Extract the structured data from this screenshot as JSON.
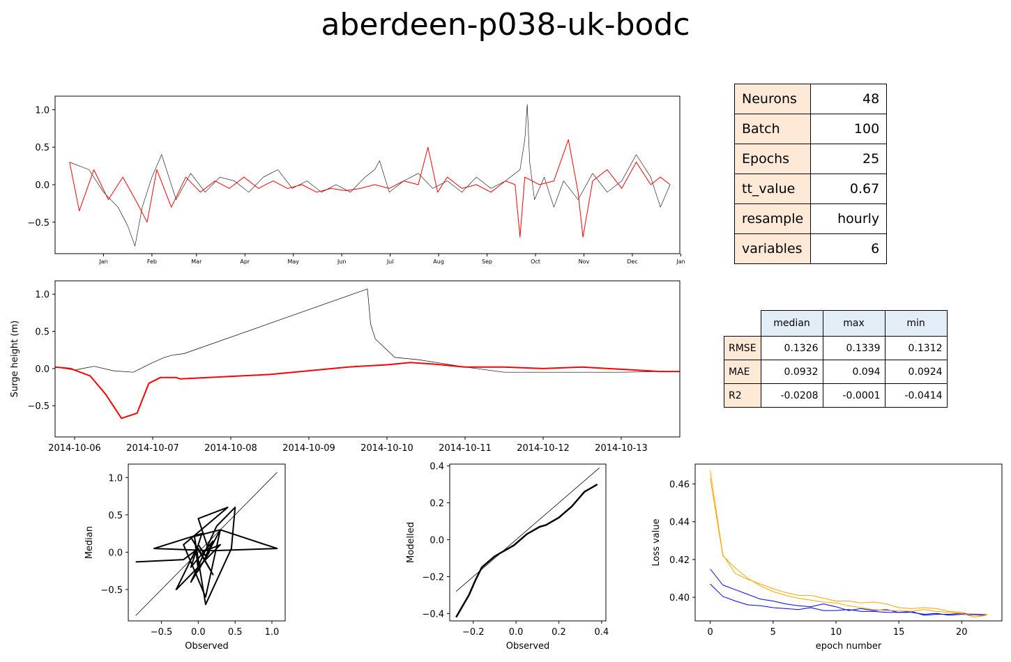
{
  "title": "aberdeen-p038-uk-bodc",
  "params": [
    {
      "key": "Neurons",
      "value": "48"
    },
    {
      "key": "Batch",
      "value": "100"
    },
    {
      "key": "Epochs",
      "value": "25"
    },
    {
      "key": "tt_value",
      "value": "0.67"
    },
    {
      "key": "resample",
      "value": "hourly"
    },
    {
      "key": "variables",
      "value": "6"
    }
  ],
  "metrics": {
    "columns": [
      "median",
      "max",
      "min"
    ],
    "rows": [
      {
        "name": "RMSE",
        "values": [
          "0.1326",
          "0.1339",
          "0.1312"
        ]
      },
      {
        "name": "MAE",
        "values": [
          "0.0932",
          "0.094",
          "0.0924"
        ]
      },
      {
        "name": "R2",
        "values": [
          "-0.0208",
          "-0.0001",
          "-0.0414"
        ]
      }
    ]
  },
  "colors": {
    "observed": "#000000",
    "modelled": "#ff0000",
    "train_loss": "#0000ff",
    "val_loss": "#ffa500"
  },
  "chart_data": [
    {
      "type": "line",
      "id": "year",
      "xlim": [
        -0.5,
        12.4
      ],
      "ylim": [
        -0.92,
        1.18
      ],
      "xticks": [
        0.5,
        1.5,
        2.42,
        3.42,
        4.42,
        5.42,
        6.42,
        7.42,
        8.42,
        9.42,
        10.42,
        11.42,
        12.42
      ],
      "xticklabels": [
        "Jan",
        "Feb",
        "Mar",
        "Apr",
        "May",
        "Jun",
        "Jul",
        "Aug",
        "Sep",
        "Oct",
        "Nov",
        "Dec",
        "Jan"
      ],
      "yticks": [
        -0.5,
        0.0,
        0.5,
        1.0
      ],
      "yticklabels": [
        "−0.5",
        "0.0",
        "0.5",
        "1.0"
      ],
      "series": [
        {
          "color": "#000000",
          "x": [
            -0.2,
            0.2,
            0.5,
            0.8,
            1.0,
            1.15,
            1.3,
            1.5,
            1.7,
            2.0,
            2.3,
            2.6,
            2.9,
            3.2,
            3.5,
            3.8,
            4.1,
            4.4,
            4.7,
            5.0,
            5.3,
            5.6,
            5.9,
            6.1,
            6.2,
            6.4,
            6.7,
            7.0,
            7.3,
            7.6,
            7.9,
            8.2,
            8.5,
            8.8,
            9.1,
            9.2,
            9.25,
            9.3,
            9.4,
            9.6,
            9.8,
            10.0,
            10.3,
            10.6,
            10.9,
            11.2,
            11.5,
            11.8,
            12.0,
            12.2
          ],
          "values": [
            0.3,
            0.2,
            -0.1,
            -0.3,
            -0.55,
            -0.82,
            -0.3,
            0.1,
            0.4,
            -0.2,
            0.15,
            -0.1,
            0.1,
            0.05,
            -0.1,
            0.1,
            0.2,
            -0.05,
            0.05,
            -0.1,
            0.0,
            -0.1,
            0.1,
            0.2,
            0.32,
            -0.1,
            0.05,
            0.15,
            -0.05,
            0.05,
            -0.1,
            0.1,
            -0.05,
            0.05,
            0.2,
            0.6,
            1.07,
            0.3,
            -0.2,
            0.1,
            -0.3,
            0.05,
            -0.2,
            0.15,
            -0.1,
            0.05,
            0.4,
            0.1,
            -0.3,
            0.0
          ]
        },
        {
          "color": "#ff0000",
          "x": [
            -0.2,
            0.0,
            0.3,
            0.6,
            0.9,
            1.2,
            1.4,
            1.6,
            1.9,
            2.2,
            2.5,
            2.8,
            3.1,
            3.4,
            3.7,
            4.0,
            4.3,
            4.6,
            4.9,
            5.2,
            5.5,
            5.8,
            6.1,
            6.4,
            6.7,
            7.0,
            7.2,
            7.4,
            7.6,
            7.9,
            8.2,
            8.5,
            8.8,
            9.0,
            9.1,
            9.2,
            9.35,
            9.5,
            9.8,
            10.1,
            10.3,
            10.4,
            10.6,
            10.9,
            11.2,
            11.5,
            11.8,
            12.0,
            12.2
          ],
          "values": [
            0.3,
            -0.35,
            0.2,
            -0.2,
            0.1,
            -0.25,
            -0.5,
            0.2,
            -0.3,
            0.1,
            -0.1,
            0.05,
            -0.05,
            0.1,
            -0.05,
            0.05,
            -0.05,
            0.0,
            -0.1,
            -0.05,
            -0.08,
            -0.05,
            0.0,
            -0.05,
            0.05,
            0.0,
            0.5,
            -0.1,
            0.1,
            -0.05,
            0.0,
            -0.1,
            0.05,
            0.0,
            -0.7,
            0.1,
            0.05,
            0.0,
            0.05,
            0.6,
            -0.1,
            -0.7,
            0.05,
            0.2,
            -0.05,
            0.3,
            0.0,
            0.1,
            0.0
          ]
        }
      ]
    },
    {
      "type": "line",
      "id": "zoom",
      "ylabel": "Surge height (m)",
      "xlim": [
        -0.25,
        7.75
      ],
      "ylim": [
        -0.92,
        1.18
      ],
      "xticks": [
        0,
        1,
        2,
        3,
        4,
        5,
        6,
        7
      ],
      "xticklabels": [
        "2014-10-06",
        "2014-10-07",
        "2014-10-08",
        "2014-10-09",
        "2014-10-10",
        "2014-10-11",
        "2014-10-12",
        "2014-10-13"
      ],
      "yticks": [
        -0.5,
        0.0,
        0.5,
        1.0
      ],
      "yticklabels": [
        "−0.5",
        "0.0",
        "0.5",
        "1.0"
      ],
      "series": [
        {
          "color": "#000000",
          "x": [
            -0.25,
            0.0,
            0.25,
            0.5,
            0.75,
            1.0,
            1.15,
            1.25,
            1.4,
            3.75,
            3.79,
            3.85,
            4.0,
            4.1,
            4.4,
            5.0,
            5.5,
            6.0,
            6.5,
            7.0,
            7.5,
            7.75
          ],
          "values": [
            0.02,
            -0.02,
            0.03,
            -0.03,
            -0.05,
            0.08,
            0.15,
            0.18,
            0.2,
            1.07,
            0.6,
            0.4,
            0.25,
            0.15,
            0.12,
            0.02,
            -0.05,
            -0.05,
            -0.05,
            -0.05,
            -0.04,
            -0.04
          ]
        },
        {
          "color": "#ff0000",
          "x": [
            -0.25,
            -0.05,
            0.2,
            0.4,
            0.6,
            0.8,
            0.95,
            1.1,
            1.3,
            1.35,
            2.5,
            3.5,
            4.0,
            4.3,
            4.6,
            5.0,
            5.5,
            6.0,
            6.5,
            7.0,
            7.5,
            7.75
          ],
          "values": [
            0.02,
            0.0,
            -0.1,
            -0.35,
            -0.67,
            -0.6,
            -0.2,
            -0.12,
            -0.12,
            -0.14,
            -0.08,
            0.02,
            0.05,
            0.08,
            0.06,
            0.02,
            0.02,
            0.0,
            0.02,
            -0.01,
            -0.04,
            -0.04
          ]
        }
      ]
    },
    {
      "type": "scatter",
      "id": "scatter",
      "xlabel": "Observed",
      "ylabel": "Median",
      "xlim": [
        -0.95,
        1.18
      ],
      "ylim": [
        -0.92,
        1.18
      ],
      "xticks": [
        -0.5,
        0.0,
        0.5,
        1.0
      ],
      "xticklabels": [
        "−0.5",
        "0.0",
        "0.5",
        "1.0"
      ],
      "yticks": [
        -0.5,
        0.0,
        0.5,
        1.0
      ],
      "yticklabels": [
        "−0.5",
        "0.0",
        "0.5",
        "1.0"
      ],
      "reference_line": [
        [
          -0.85,
          -0.85
        ],
        [
          1.07,
          1.07
        ]
      ],
      "series": [
        {
          "color": "#000000",
          "x": [
            -0.85,
            -0.2,
            0.0,
            0.2,
            -0.1,
            0.3,
            0.1,
            -0.2,
            0.4,
            0.0,
            0.15,
            -0.1,
            0.25,
            0.5,
            0.45,
            0.1,
            -0.05,
            0.0,
            0.3,
            1.07,
            0.2,
            -0.6,
            0.05,
            -0.1,
            0.2,
            0.1,
            0.0,
            -0.3,
            0.3,
            0.05
          ],
          "values": [
            -0.13,
            -0.1,
            0.05,
            -0.3,
            0.2,
            0.3,
            -0.6,
            0.1,
            0.6,
            0.45,
            0.0,
            -0.4,
            0.35,
            0.6,
            0.05,
            -0.7,
            0.2,
            -0.25,
            0.3,
            0.05,
            0.02,
            0.05,
            0.25,
            -0.2,
            0.15,
            -0.05,
            0.1,
            -0.5,
            0.1,
            0.0
          ]
        }
      ]
    },
    {
      "type": "line",
      "id": "qq",
      "xlabel": "Observed",
      "ylabel": "Modelled",
      "xlim": [
        -0.31,
        0.42
      ],
      "ylim": [
        -0.44,
        0.41
      ],
      "xticks": [
        -0.2,
        0.0,
        0.2,
        0.4
      ],
      "xticklabels": [
        "−0.2",
        "0.0",
        "0.2",
        "0.4"
      ],
      "yticks": [
        -0.4,
        -0.2,
        0.0,
        0.2,
        0.4
      ],
      "yticklabels": [
        "−0.4",
        "−0.2",
        "0.0",
        "0.2",
        "0.4"
      ],
      "reference_line": [
        [
          -0.28,
          -0.28
        ],
        [
          0.39,
          0.39
        ]
      ],
      "series": [
        {
          "color": "#000000",
          "x": [
            -0.28,
            -0.25,
            -0.22,
            -0.19,
            -0.16,
            -0.13,
            -0.1,
            -0.07,
            -0.04,
            -0.01,
            0.02,
            0.05,
            0.08,
            0.11,
            0.14,
            0.17,
            0.2,
            0.23,
            0.26,
            0.29,
            0.32,
            0.35,
            0.38
          ],
          "values": [
            -0.42,
            -0.36,
            -0.3,
            -0.22,
            -0.15,
            -0.12,
            -0.09,
            -0.07,
            -0.05,
            -0.03,
            0.0,
            0.03,
            0.05,
            0.07,
            0.08,
            0.1,
            0.12,
            0.15,
            0.18,
            0.22,
            0.26,
            0.28,
            0.3
          ]
        }
      ]
    },
    {
      "type": "line",
      "id": "loss",
      "xlabel": "epoch number",
      "ylabel": "Loss value",
      "xlim": [
        -1.2,
        23.2
      ],
      "ylim": [
        0.3875,
        0.4705
      ],
      "xticks": [
        0,
        5,
        10,
        15,
        20
      ],
      "xticklabels": [
        "0",
        "5",
        "10",
        "15",
        "20"
      ],
      "yticks": [
        0.4,
        0.42,
        0.44,
        0.46
      ],
      "yticklabels": [
        "0.40",
        "0.42",
        "0.44",
        "0.46"
      ],
      "series": [
        {
          "color": "#0000ff",
          "x": [
            0,
            1,
            2,
            3,
            4,
            5,
            6,
            7,
            8,
            9,
            10,
            11,
            12,
            13,
            14,
            15,
            16,
            17,
            18,
            19,
            20,
            21,
            22
          ],
          "values": [
            0.407,
            0.4005,
            0.398,
            0.396,
            0.3955,
            0.3945,
            0.394,
            0.3935,
            0.3945,
            0.393,
            0.393,
            0.3935,
            0.3925,
            0.3925,
            0.392,
            0.392,
            0.392,
            0.391,
            0.3915,
            0.3905,
            0.391,
            0.3905,
            0.3905
          ]
        },
        {
          "color": "#0000ff",
          "x": [
            0,
            1,
            2,
            3,
            4,
            5,
            6,
            7,
            8,
            9,
            10,
            11,
            12,
            13,
            14,
            15,
            16,
            17,
            18,
            19,
            20,
            21,
            22
          ],
          "values": [
            0.415,
            0.4065,
            0.404,
            0.4015,
            0.399,
            0.398,
            0.3965,
            0.3955,
            0.395,
            0.3965,
            0.395,
            0.393,
            0.394,
            0.393,
            0.3935,
            0.392,
            0.3925,
            0.3905,
            0.391,
            0.391,
            0.3915,
            0.391,
            0.391
          ]
        },
        {
          "color": "#ffa500",
          "x": [
            0,
            1,
            2,
            3,
            4,
            5,
            6,
            7,
            8,
            9,
            10,
            11,
            12,
            13,
            14,
            15,
            16,
            17,
            18,
            19,
            20,
            21,
            22
          ],
          "values": [
            0.467,
            0.4225,
            0.4125,
            0.4095,
            0.407,
            0.4045,
            0.4025,
            0.401,
            0.401,
            0.3995,
            0.398,
            0.398,
            0.397,
            0.3975,
            0.3965,
            0.3945,
            0.394,
            0.3945,
            0.394,
            0.3925,
            0.392,
            0.3905,
            0.391
          ]
        },
        {
          "color": "#ffa500",
          "x": [
            0,
            1,
            2,
            3,
            4,
            5,
            6,
            7,
            8,
            9,
            10,
            11,
            12,
            13,
            14,
            15,
            16,
            17,
            18,
            19,
            20,
            21,
            22
          ],
          "values": [
            0.463,
            0.422,
            0.4155,
            0.41,
            0.406,
            0.403,
            0.401,
            0.3995,
            0.3985,
            0.3975,
            0.397,
            0.3955,
            0.3945,
            0.3935,
            0.393,
            0.393,
            0.3925,
            0.3935,
            0.3925,
            0.392,
            0.3915,
            0.3895,
            0.3905
          ]
        }
      ]
    }
  ]
}
